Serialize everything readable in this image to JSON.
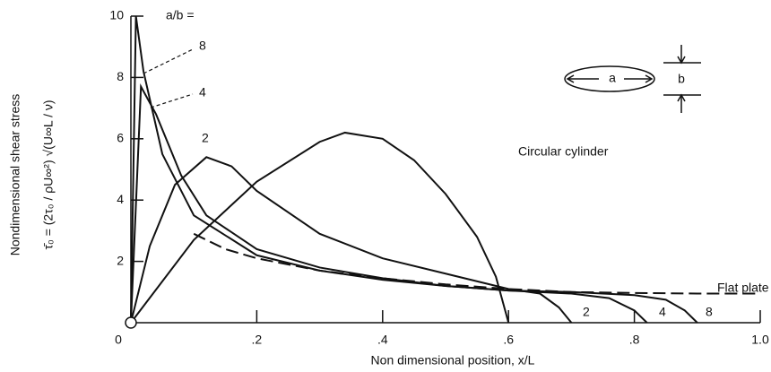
{
  "chart_data": {
    "type": "line",
    "xlabel": "Non dimensional position,  x/L",
    "ylabel": "Nondimensional shear stress",
    "ylabel_formula": "τ̄₀ = (2τ₀ / ρU∞²) √(U∞L / ν)",
    "legend_title": "a/b =",
    "inset_labels": [
      "a",
      "b"
    ],
    "xlim": [
      0,
      1.0
    ],
    "ylim": [
      0,
      10
    ],
    "xticks": [
      0,
      {
        "value": 0.2,
        "label": ".2"
      },
      {
        "value": 0.4,
        "label": ".4"
      },
      {
        "value": 0.6,
        "label": ".6"
      },
      {
        "value": 0.8,
        "label": ".8"
      },
      {
        "value": 1.0,
        "label": "1.0"
      }
    ],
    "yticks": [
      2,
      4,
      6,
      8,
      10
    ],
    "series": [
      {
        "name": "8",
        "color": "#111111",
        "style": "solid",
        "x": [
          0,
          0.008,
          0.02,
          0.05,
          0.1,
          0.2,
          0.3,
          0.4,
          0.5,
          0.6,
          0.7,
          0.8,
          0.85,
          0.88,
          0.9
        ],
        "values": [
          0,
          10,
          8.2,
          5.5,
          3.5,
          2.2,
          1.7,
          1.4,
          1.2,
          1.05,
          1.0,
          0.9,
          0.75,
          0.4,
          0
        ]
      },
      {
        "name": "4",
        "color": "#111111",
        "style": "solid",
        "x": [
          0,
          0.016,
          0.04,
          0.08,
          0.12,
          0.2,
          0.3,
          0.4,
          0.5,
          0.6,
          0.7,
          0.76,
          0.8,
          0.82
        ],
        "values": [
          0,
          7.7,
          6.8,
          4.8,
          3.5,
          2.4,
          1.8,
          1.45,
          1.2,
          1.05,
          0.95,
          0.8,
          0.4,
          0
        ]
      },
      {
        "name": "2",
        "color": "#111111",
        "style": "solid",
        "x": [
          0,
          0.03,
          0.07,
          0.12,
          0.16,
          0.2,
          0.3,
          0.4,
          0.5,
          0.6,
          0.65,
          0.68,
          0.7
        ],
        "values": [
          0,
          2.5,
          4.5,
          5.4,
          5.1,
          4.3,
          2.9,
          2.1,
          1.6,
          1.1,
          0.95,
          0.5,
          0
        ]
      },
      {
        "name": "Circular cylinder",
        "color": "#111111",
        "style": "solid",
        "x": [
          0,
          0.1,
          0.2,
          0.3,
          0.34,
          0.4,
          0.45,
          0.5,
          0.55,
          0.58,
          0.6
        ],
        "values": [
          0,
          2.7,
          4.6,
          5.9,
          6.2,
          6.0,
          5.3,
          4.2,
          2.8,
          1.5,
          0
        ]
      },
      {
        "name": "Flat plate",
        "color": "#111111",
        "style": "dashed",
        "x": [
          0.1,
          0.15,
          0.2,
          0.3,
          0.4,
          0.5,
          0.6,
          0.7,
          0.8,
          0.9,
          1.0
        ],
        "values": [
          2.9,
          2.4,
          2.1,
          1.7,
          1.45,
          1.25,
          1.1,
          1.0,
          0.97,
          0.95,
          0.95
        ]
      }
    ]
  }
}
